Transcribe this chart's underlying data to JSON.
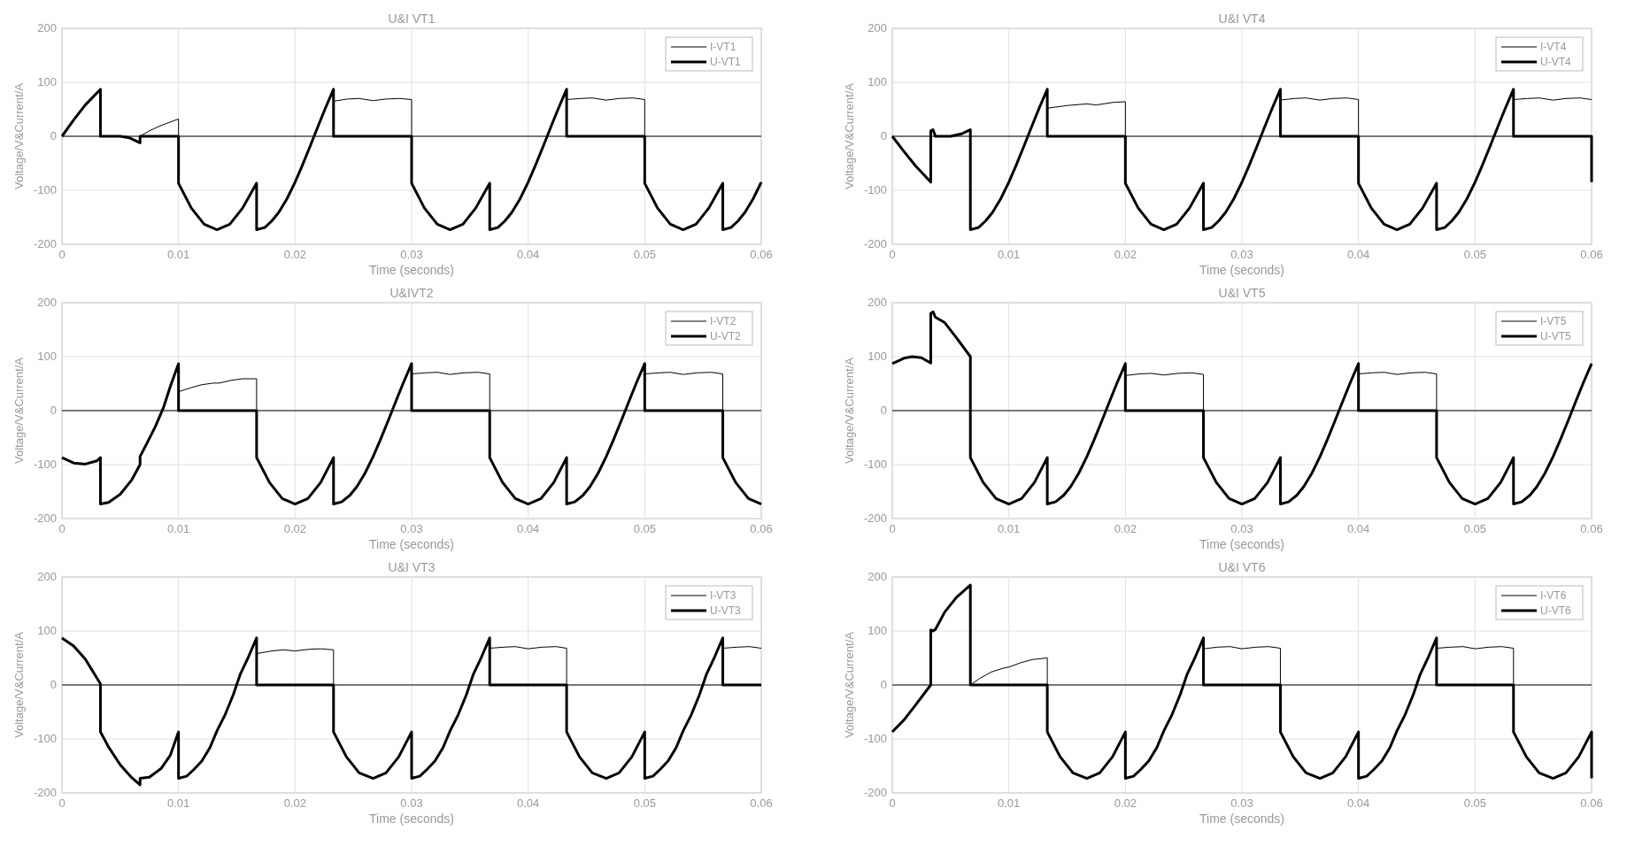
{
  "chart_data": [
    {
      "type": "line",
      "title": "U&I VT1",
      "xlabel": "Time (seconds)",
      "ylabel": "Voltage/V&Current/A",
      "xlim": [
        0,
        0.06
      ],
      "ylim": [
        -200,
        200
      ],
      "xticks": [
        0,
        0.01,
        0.02,
        0.03,
        0.04,
        0.05,
        0.06
      ],
      "yticks": [
        -200,
        -100,
        0,
        100,
        200
      ],
      "grid": true,
      "legend": "top right",
      "series": [
        {
          "name": "I-VT1",
          "color": "#000000",
          "x": [
            0,
            0.0067,
            0.0075,
            0.0085,
            0.0095,
            0.01,
            0.01,
            0.0233,
            0.0233,
            0.0245,
            0.0255,
            0.0267,
            0.0278,
            0.029,
            0.03,
            0.03,
            0.0433,
            0.0433,
            0.0445,
            0.0455,
            0.0467,
            0.0478,
            0.049,
            0.05,
            0.05,
            0.06
          ],
          "values": [
            0,
            0,
            10,
            20,
            28,
            32,
            0,
            0,
            65,
            69,
            70,
            66,
            69,
            70,
            68,
            0,
            0,
            68,
            70,
            71,
            67,
            70,
            71,
            68,
            0,
            0
          ]
        },
        {
          "name": "U-VT1",
          "color": "#000000",
          "x": [
            0,
            0.001,
            0.002,
            0.0033,
            0.0033,
            0.005,
            0.0058,
            0.0067,
            0.0067,
            0.01,
            0.01,
            0.0111,
            0.0122,
            0.0133,
            0.0144,
            0.0155,
            0.0167,
            0.0167,
            0.0174,
            0.018,
            0.0186,
            0.0193,
            0.02,
            0.0206,
            0.0213,
            0.022,
            0.0226,
            0.0233,
            0.0233,
            0.03,
            0.03,
            0.0311,
            0.0322,
            0.0333,
            0.0344,
            0.0355,
            0.0367,
            0.0367,
            0.0374,
            0.038,
            0.0386,
            0.0393,
            0.04,
            0.0406,
            0.0413,
            0.042,
            0.0426,
            0.0433,
            0.0433,
            0.05,
            0.05,
            0.0511,
            0.0522,
            0.0533,
            0.0544,
            0.0555,
            0.0567,
            0.0567,
            0.0574,
            0.058,
            0.0586,
            0.0593,
            0.06
          ],
          "values": [
            0,
            30,
            58,
            87,
            0,
            0,
            -3,
            -12,
            0,
            0,
            -87,
            -133,
            -163,
            -173,
            -163,
            -133,
            -87,
            -173,
            -169,
            -157,
            -141,
            -116,
            -85,
            -55,
            -18,
            20,
            52,
            87,
            0,
            0,
            -87,
            -133,
            -163,
            -173,
            -163,
            -133,
            -87,
            -173,
            -169,
            -157,
            -141,
            -116,
            -85,
            -55,
            -18,
            20,
            52,
            87,
            0,
            0,
            -87,
            -133,
            -163,
            -173,
            -163,
            -133,
            -87,
            -173,
            -169,
            -157,
            -141,
            -116,
            -85
          ]
        }
      ]
    },
    {
      "type": "line",
      "title": "U&I VT4",
      "xlabel": "Time (seconds)",
      "ylabel": "Voltage/V&Current/A",
      "xlim": [
        0,
        0.06
      ],
      "ylim": [
        -200,
        200
      ],
      "xticks": [
        0,
        0.01,
        0.02,
        0.03,
        0.04,
        0.05,
        0.06
      ],
      "yticks": [
        -200,
        -100,
        0,
        100,
        200
      ],
      "grid": true,
      "legend": "top right",
      "series": [
        {
          "name": "I-VT4",
          "color": "#000000",
          "x": [
            0,
            0.0133,
            0.0133,
            0.015,
            0.0167,
            0.0175,
            0.019,
            0.02,
            0.02,
            0.0333,
            0.0333,
            0.0345,
            0.0355,
            0.0367,
            0.0378,
            0.039,
            0.04,
            0.04,
            0.0533,
            0.0533,
            0.0545,
            0.0555,
            0.0567,
            0.0578,
            0.059,
            0.06
          ],
          "values": [
            0,
            0,
            52,
            57,
            60,
            58,
            63,
            64,
            0,
            0,
            67,
            70,
            71,
            67,
            70,
            71,
            68,
            0,
            0,
            68,
            70,
            71,
            67,
            70,
            71,
            68
          ]
        },
        {
          "name": "U-VT4",
          "color": "#000000",
          "x": [
            0,
            0.001,
            0.002,
            0.0033,
            0.0033,
            0.0035,
            0.0037,
            0.005,
            0.006,
            0.0067,
            0.0067,
            0.0074,
            0.008,
            0.0086,
            0.0093,
            0.01,
            0.0106,
            0.0113,
            0.012,
            0.0126,
            0.0133,
            0.0133,
            0.02,
            0.02,
            0.0211,
            0.0222,
            0.0233,
            0.0244,
            0.0255,
            0.0267,
            0.0267,
            0.0274,
            0.028,
            0.0286,
            0.0293,
            0.03,
            0.0306,
            0.0313,
            0.032,
            0.0326,
            0.0333,
            0.0333,
            0.04,
            0.04,
            0.0411,
            0.0422,
            0.0433,
            0.0444,
            0.0455,
            0.0467,
            0.0467,
            0.0474,
            0.048,
            0.0486,
            0.0493,
            0.05,
            0.0506,
            0.0513,
            0.052,
            0.0526,
            0.0533,
            0.0533,
            0.06,
            0.06
          ],
          "values": [
            0,
            -28,
            -55,
            -85,
            10,
            12,
            0,
            0,
            5,
            12,
            -173,
            -169,
            -157,
            -141,
            -116,
            -85,
            -55,
            -18,
            20,
            52,
            87,
            0,
            0,
            -87,
            -133,
            -163,
            -173,
            -163,
            -133,
            -87,
            -173,
            -169,
            -157,
            -141,
            -116,
            -85,
            -55,
            -18,
            20,
            52,
            87,
            0,
            0,
            -87,
            -133,
            -163,
            -173,
            -163,
            -133,
            -87,
            -173,
            -169,
            -157,
            -141,
            -116,
            -85,
            -55,
            -18,
            20,
            52,
            87,
            0,
            0,
            -85
          ]
        }
      ]
    },
    {
      "type": "line",
      "title": "U&IVT2",
      "xlabel": "Time (seconds)",
      "ylabel": "Voltage/V&Current/A",
      "xlim": [
        0,
        0.06
      ],
      "ylim": [
        -200,
        200
      ],
      "xticks": [
        0,
        0.01,
        0.02,
        0.03,
        0.04,
        0.05,
        0.06
      ],
      "yticks": [
        -200,
        -100,
        0,
        100,
        200
      ],
      "grid": true,
      "legend": "top right",
      "series": [
        {
          "name": "I-VT2",
          "color": "#000000",
          "x": [
            0,
            0.01,
            0.01,
            0.011,
            0.012,
            0.013,
            0.0135,
            0.0145,
            0.0155,
            0.0167,
            0.0167,
            0.03,
            0.03,
            0.0312,
            0.0322,
            0.0333,
            0.0345,
            0.0357,
            0.0367,
            0.0367,
            0.05,
            0.05,
            0.0512,
            0.0522,
            0.0533,
            0.0545,
            0.0557,
            0.0567,
            0.0567,
            0.06
          ],
          "values": [
            0,
            0,
            35,
            42,
            48,
            51,
            51,
            56,
            59,
            59,
            0,
            0,
            68,
            70,
            71,
            67,
            70,
            71,
            68,
            0,
            0,
            68,
            70,
            71,
            67,
            70,
            71,
            68,
            0,
            0
          ]
        },
        {
          "name": "U-VT2",
          "color": "#000000",
          "x": [
            0,
            0.001,
            0.002,
            0.003,
            0.0033,
            0.0033,
            0.004,
            0.005,
            0.006,
            0.0067,
            0.0067,
            0.0073,
            0.008,
            0.0087,
            0.0093,
            0.01,
            0.01,
            0.0167,
            0.0167,
            0.0178,
            0.0189,
            0.02,
            0.0211,
            0.0222,
            0.0233,
            0.0233,
            0.024,
            0.0247,
            0.0253,
            0.026,
            0.0267,
            0.0273,
            0.028,
            0.0287,
            0.0293,
            0.03,
            0.03,
            0.0367,
            0.0367,
            0.0378,
            0.0389,
            0.04,
            0.0411,
            0.0422,
            0.0433,
            0.0433,
            0.044,
            0.0447,
            0.0453,
            0.046,
            0.0467,
            0.0473,
            0.048,
            0.0487,
            0.0493,
            0.05,
            0.05,
            0.0567,
            0.0567,
            0.0578,
            0.0589,
            0.06
          ],
          "values": [
            -87,
            -97,
            -99,
            -93,
            -87,
            -173,
            -170,
            -155,
            -128,
            -100,
            -85,
            -60,
            -30,
            5,
            45,
            87,
            0,
            0,
            -87,
            -133,
            -163,
            -173,
            -163,
            -133,
            -87,
            -173,
            -169,
            -157,
            -141,
            -116,
            -85,
            -55,
            -18,
            20,
            52,
            87,
            0,
            0,
            -87,
            -133,
            -163,
            -173,
            -163,
            -133,
            -87,
            -173,
            -169,
            -157,
            -141,
            -116,
            -85,
            -55,
            -18,
            20,
            52,
            87,
            0,
            0,
            -87,
            -133,
            -163,
            -173
          ]
        }
      ]
    },
    {
      "type": "line",
      "title": "U&I VT5",
      "xlabel": "Time (seconds)",
      "ylabel": "Voltage/V&Current/A",
      "xlim": [
        0,
        0.06
      ],
      "ylim": [
        -200,
        200
      ],
      "xticks": [
        0,
        0.01,
        0.02,
        0.03,
        0.04,
        0.05,
        0.06
      ],
      "yticks": [
        -200,
        -100,
        0,
        100,
        200
      ],
      "grid": true,
      "legend": "top right",
      "series": [
        {
          "name": "I-VT5",
          "color": "#000000",
          "x": [
            0,
            0.02,
            0.02,
            0.0212,
            0.0222,
            0.0233,
            0.0245,
            0.0257,
            0.0267,
            0.0267,
            0.04,
            0.04,
            0.0412,
            0.0422,
            0.0433,
            0.0445,
            0.0457,
            0.0467,
            0.0467,
            0.06
          ],
          "values": [
            0,
            0,
            65,
            68,
            69,
            66,
            69,
            70,
            67,
            0,
            0,
            68,
            70,
            71,
            67,
            70,
            71,
            68,
            0,
            0
          ]
        },
        {
          "name": "U-VT5",
          "color": "#000000",
          "x": [
            0,
            0.001,
            0.0017,
            0.0025,
            0.0033,
            0.0033,
            0.0035,
            0.0037,
            0.0045,
            0.0055,
            0.0067,
            0.0067,
            0.0078,
            0.0089,
            0.01,
            0.0111,
            0.0122,
            0.0133,
            0.0133,
            0.014,
            0.0147,
            0.0153,
            0.016,
            0.0167,
            0.0173,
            0.018,
            0.0187,
            0.0193,
            0.02,
            0.02,
            0.0267,
            0.0267,
            0.0278,
            0.0289,
            0.03,
            0.0311,
            0.0322,
            0.0333,
            0.0333,
            0.034,
            0.0347,
            0.0353,
            0.036,
            0.0367,
            0.0373,
            0.038,
            0.0387,
            0.0393,
            0.04,
            0.04,
            0.0467,
            0.0467,
            0.0478,
            0.0489,
            0.05,
            0.0511,
            0.0522,
            0.0533,
            0.0533,
            0.054,
            0.0547,
            0.0553,
            0.056,
            0.0567,
            0.0573,
            0.058,
            0.0587,
            0.0593,
            0.06
          ],
          "values": [
            87,
            97,
            100,
            98,
            88,
            180,
            183,
            173,
            163,
            135,
            100,
            -87,
            -133,
            -163,
            -173,
            -163,
            -133,
            -87,
            -173,
            -169,
            -157,
            -141,
            -116,
            -85,
            -55,
            -18,
            20,
            52,
            87,
            0,
            0,
            -87,
            -133,
            -163,
            -173,
            -163,
            -133,
            -87,
            -173,
            -169,
            -157,
            -141,
            -116,
            -85,
            -55,
            -18,
            20,
            52,
            87,
            0,
            0,
            -87,
            -133,
            -163,
            -173,
            -163,
            -133,
            -87,
            -173,
            -169,
            -157,
            -141,
            -116,
            -85,
            -55,
            -18,
            20,
            52,
            87
          ]
        }
      ]
    },
    {
      "type": "line",
      "title": "U&I VT3",
      "xlabel": "Time (seconds)",
      "ylabel": "Voltage/V&Current/A",
      "xlim": [
        0,
        0.06
      ],
      "ylim": [
        -200,
        200
      ],
      "xticks": [
        0,
        0.01,
        0.02,
        0.03,
        0.04,
        0.05,
        0.06
      ],
      "yticks": [
        -200,
        -100,
        0,
        100,
        200
      ],
      "grid": true,
      "legend": "top right",
      "series": [
        {
          "name": "I-VT3",
          "color": "#000000",
          "x": [
            0,
            0.0167,
            0.0167,
            0.018,
            0.019,
            0.02,
            0.0212,
            0.0222,
            0.0233,
            0.0233,
            0.0367,
            0.0367,
            0.0379,
            0.0389,
            0.04,
            0.0412,
            0.0424,
            0.0433,
            0.0433,
            0.0567,
            0.0567,
            0.0579,
            0.059,
            0.06
          ],
          "values": [
            0,
            0,
            58,
            63,
            65,
            63,
            66,
            67,
            65,
            0,
            0,
            68,
            70,
            71,
            67,
            70,
            71,
            68,
            0,
            0,
            68,
            70,
            71,
            68
          ]
        },
        {
          "name": "U-VT3",
          "color": "#000000",
          "x": [
            0,
            0.001,
            0.002,
            0.0033,
            0.0033,
            0.004,
            0.005,
            0.006,
            0.0067,
            0.0067,
            0.0075,
            0.0085,
            0.0093,
            0.01,
            0.01,
            0.0107,
            0.0113,
            0.012,
            0.0127,
            0.0133,
            0.014,
            0.0147,
            0.0153,
            0.016,
            0.0167,
            0.0167,
            0.0233,
            0.0233,
            0.0244,
            0.0255,
            0.0267,
            0.0278,
            0.0289,
            0.03,
            0.03,
            0.0307,
            0.0313,
            0.032,
            0.0327,
            0.0333,
            0.034,
            0.0347,
            0.0353,
            0.036,
            0.0367,
            0.0367,
            0.0433,
            0.0433,
            0.0444,
            0.0455,
            0.0467,
            0.0478,
            0.0489,
            0.05,
            0.05,
            0.0507,
            0.0513,
            0.052,
            0.0527,
            0.0533,
            0.054,
            0.0547,
            0.0553,
            0.056,
            0.0567,
            0.0567,
            0.06
          ],
          "values": [
            87,
            72,
            48,
            2,
            -87,
            -115,
            -148,
            -172,
            -185,
            -173,
            -171,
            -155,
            -130,
            -87,
            -173,
            -169,
            -157,
            -141,
            -116,
            -85,
            -55,
            -18,
            20,
            52,
            87,
            0,
            0,
            -87,
            -133,
            -163,
            -173,
            -163,
            -133,
            -87,
            -173,
            -169,
            -157,
            -141,
            -116,
            -85,
            -55,
            -18,
            20,
            52,
            87,
            0,
            0,
            -87,
            -133,
            -163,
            -173,
            -163,
            -133,
            -87,
            -173,
            -169,
            -157,
            -141,
            -116,
            -85,
            -55,
            -18,
            20,
            52,
            87,
            0,
            0
          ]
        }
      ]
    },
    {
      "type": "line",
      "title": "U&I VT6",
      "xlabel": "Time (seconds)",
      "ylabel": "Voltage/V&Current/A",
      "xlim": [
        0,
        0.06
      ],
      "ylim": [
        -200,
        200
      ],
      "xticks": [
        0,
        0.01,
        0.02,
        0.03,
        0.04,
        0.05,
        0.06
      ],
      "yticks": [
        -200,
        -100,
        0,
        100,
        200
      ],
      "grid": true,
      "legend": "top right",
      "series": [
        {
          "name": "I-VT6",
          "color": "#000000",
          "x": [
            0,
            0.0067,
            0.0075,
            0.0085,
            0.0095,
            0.01,
            0.011,
            0.012,
            0.0133,
            0.0133,
            0.0267,
            0.0267,
            0.0279,
            0.029,
            0.03,
            0.0312,
            0.0323,
            0.0333,
            0.0333,
            0.0467,
            0.0467,
            0.0479,
            0.049,
            0.05,
            0.0512,
            0.0523,
            0.0533,
            0.0533,
            0.06
          ],
          "values": [
            0,
            0,
            12,
            24,
            31,
            33,
            41,
            47,
            50,
            0,
            0,
            67,
            70,
            71,
            67,
            70,
            71,
            68,
            0,
            0,
            68,
            70,
            71,
            67,
            70,
            71,
            68,
            0,
            0
          ]
        },
        {
          "name": "U-VT6",
          "color": "#000000",
          "x": [
            0,
            0.001,
            0.002,
            0.0033,
            0.0033,
            0.0035,
            0.0037,
            0.0045,
            0.0055,
            0.0067,
            0.0067,
            0.0133,
            0.0133,
            0.0144,
            0.0155,
            0.0167,
            0.0178,
            0.0189,
            0.02,
            0.02,
            0.0207,
            0.0213,
            0.022,
            0.0227,
            0.0233,
            0.024,
            0.0247,
            0.0253,
            0.026,
            0.0267,
            0.0267,
            0.0333,
            0.0333,
            0.0344,
            0.0355,
            0.0367,
            0.0378,
            0.0389,
            0.04,
            0.04,
            0.0407,
            0.0413,
            0.042,
            0.0427,
            0.0433,
            0.044,
            0.0447,
            0.0453,
            0.046,
            0.0467,
            0.0467,
            0.0533,
            0.0533,
            0.0544,
            0.0555,
            0.0567,
            0.0578,
            0.0589,
            0.06,
            0.06
          ],
          "values": [
            -87,
            -65,
            -37,
            0,
            102,
            100,
            103,
            135,
            162,
            185,
            0,
            0,
            -87,
            -133,
            -163,
            -173,
            -163,
            -133,
            -87,
            -173,
            -169,
            -157,
            -141,
            -116,
            -85,
            -55,
            -18,
            20,
            52,
            87,
            0,
            0,
            -87,
            -133,
            -163,
            -173,
            -163,
            -133,
            -87,
            -173,
            -169,
            -157,
            -141,
            -116,
            -85,
            -55,
            -18,
            20,
            52,
            87,
            0,
            0,
            -87,
            -133,
            -163,
            -173,
            -163,
            -133,
            -87,
            -173
          ]
        }
      ]
    }
  ]
}
